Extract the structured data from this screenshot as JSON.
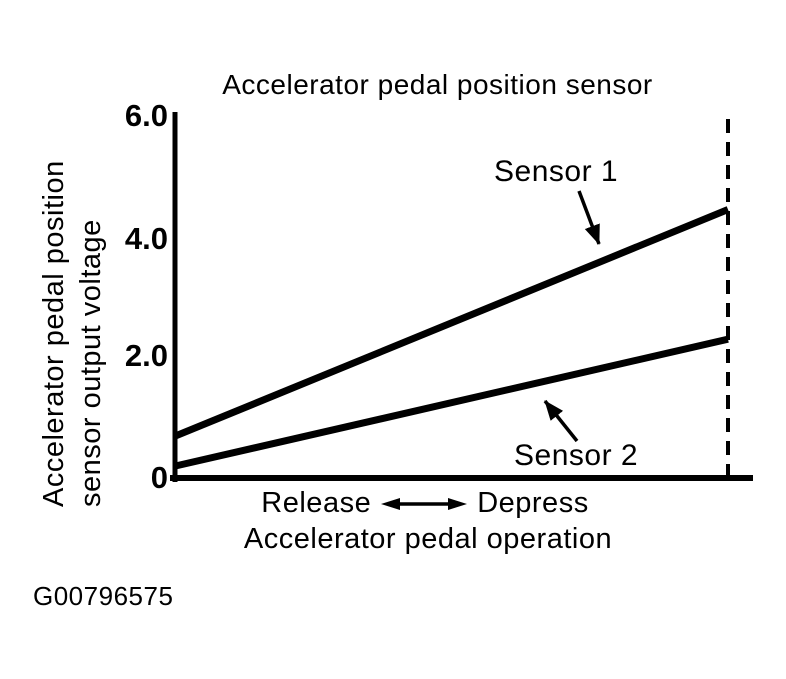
{
  "figure": {
    "code": "G00796575"
  },
  "chart_data": {
    "type": "line",
    "title": "Accelerator pedal position sensor",
    "ylabel_lines": [
      "Accelerator pedal position",
      "sensor output voltage"
    ],
    "xlabel": "Accelerator pedal operation",
    "x_axis_annotation": {
      "left": "Release",
      "right": "Depress"
    },
    "yticks": [
      "6.0",
      "4.0",
      "2.0",
      "0"
    ],
    "ytick_values": [
      6.0,
      4.0,
      2.0,
      0
    ],
    "ylim": [
      0,
      6.0
    ],
    "x": [
      0,
      1
    ],
    "series": [
      {
        "name": "Sensor 1",
        "values": [
          0.7,
          4.45
        ]
      },
      {
        "name": "Sensor 2",
        "values": [
          0.2,
          2.3
        ]
      }
    ],
    "guide_line": {
      "x": 1,
      "style": "dashed"
    },
    "grid": false,
    "colors": {
      "ink": "#000000",
      "background": "#ffffff"
    }
  }
}
